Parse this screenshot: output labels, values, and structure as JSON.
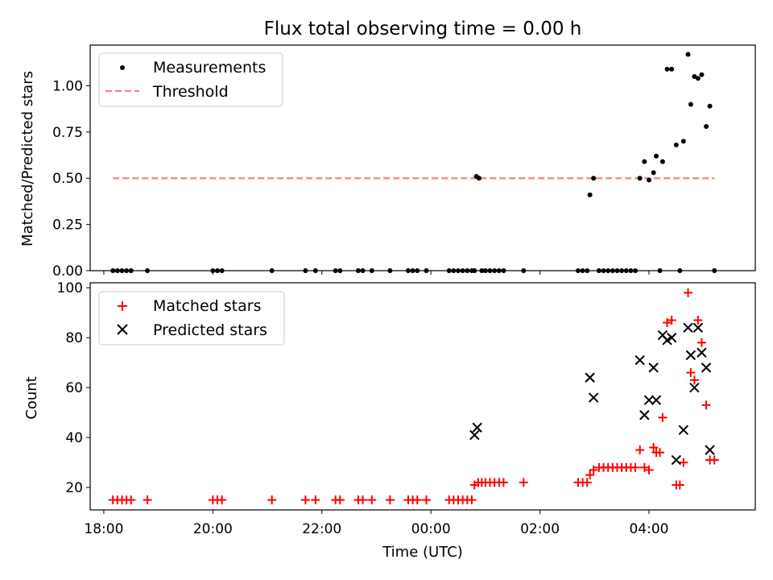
{
  "chart_data": [
    {
      "type": "scatter",
      "title": "Flux total observing time = 0.00 h",
      "xlabel": "",
      "ylabel": "Matched/Predicted stars",
      "xlim": [
        "17:45",
        "05:57"
      ],
      "ylim": [
        0.0,
        1.22
      ],
      "y_ticks": [
        "0.00",
        "0.25",
        "0.50",
        "0.75",
        "1.00"
      ],
      "legend_position": "upper-left",
      "grid": false,
      "series": [
        {
          "name": "Measurements",
          "marker": "dot",
          "color": "#000000",
          "points": [
            [
              "18:10",
              0
            ],
            [
              "18:15",
              0
            ],
            [
              "18:20",
              0
            ],
            [
              "18:25",
              0
            ],
            [
              "18:30",
              0
            ],
            [
              "18:48",
              0
            ],
            [
              "20:00",
              0
            ],
            [
              "20:05",
              0
            ],
            [
              "20:10",
              0
            ],
            [
              "21:05",
              0
            ],
            [
              "21:42",
              0
            ],
            [
              "21:53",
              0
            ],
            [
              "22:15",
              0
            ],
            [
              "22:20",
              0
            ],
            [
              "22:40",
              0
            ],
            [
              "22:45",
              0
            ],
            [
              "22:55",
              0
            ],
            [
              "23:15",
              0
            ],
            [
              "23:35",
              0
            ],
            [
              "23:40",
              0
            ],
            [
              "23:45",
              0
            ],
            [
              "23:55",
              0
            ],
            [
              "00:20",
              0
            ],
            [
              "00:25",
              0
            ],
            [
              "00:30",
              0
            ],
            [
              "00:35",
              0
            ],
            [
              "00:40",
              0
            ],
            [
              "00:45",
              0
            ],
            [
              "00:48",
              0
            ],
            [
              "00:50",
              0.51
            ],
            [
              "00:53",
              0.5
            ],
            [
              "00:56",
              0
            ],
            [
              "01:00",
              0
            ],
            [
              "01:05",
              0
            ],
            [
              "01:10",
              0
            ],
            [
              "01:15",
              0
            ],
            [
              "01:20",
              0
            ],
            [
              "01:42",
              0
            ],
            [
              "02:42",
              0
            ],
            [
              "02:47",
              0
            ],
            [
              "02:52",
              0
            ],
            [
              "02:55",
              0.41
            ],
            [
              "02:59",
              0.5
            ],
            [
              "03:05",
              0
            ],
            [
              "03:10",
              0
            ],
            [
              "03:15",
              0
            ],
            [
              "03:20",
              0
            ],
            [
              "03:25",
              0
            ],
            [
              "03:30",
              0
            ],
            [
              "03:35",
              0
            ],
            [
              "03:40",
              0
            ],
            [
              "03:45",
              0
            ],
            [
              "03:50",
              0.5
            ],
            [
              "03:55",
              0.59
            ],
            [
              "04:00",
              0.49
            ],
            [
              "04:05",
              0.53
            ],
            [
              "04:08",
              0.62
            ],
            [
              "04:12",
              0
            ],
            [
              "04:15",
              0.59
            ],
            [
              "04:20",
              1.09
            ],
            [
              "04:25",
              1.09
            ],
            [
              "04:30",
              0.68
            ],
            [
              "04:34",
              0
            ],
            [
              "04:38",
              0.7
            ],
            [
              "04:43",
              1.17
            ],
            [
              "04:46",
              0.9
            ],
            [
              "04:50",
              1.05
            ],
            [
              "04:54",
              1.04
            ],
            [
              "04:58",
              1.06
            ],
            [
              "05:03",
              0.78
            ],
            [
              "05:07",
              0.89
            ],
            [
              "05:12",
              0
            ]
          ]
        },
        {
          "name": "Threshold",
          "style": "dashed-line",
          "color": "#ff7f7f",
          "points": [
            [
              "18:10",
              0.5
            ],
            [
              "05:12",
              0.5
            ]
          ]
        }
      ]
    },
    {
      "type": "scatter",
      "title": "",
      "xlabel": "Time (UTC)",
      "ylabel": "Count",
      "xlim": [
        "17:45",
        "05:57"
      ],
      "ylim": [
        11,
        102
      ],
      "y_ticks": [
        "20",
        "40",
        "60",
        "80",
        "100"
      ],
      "x_ticks": [
        "18:00",
        "20:00",
        "22:00",
        "00:00",
        "02:00",
        "04:00"
      ],
      "legend_position": "upper-left",
      "grid": false,
      "series": [
        {
          "name": "Matched stars",
          "marker": "plus",
          "color": "#ff0000",
          "points": [
            [
              "18:10",
              15
            ],
            [
              "18:15",
              15
            ],
            [
              "18:20",
              15
            ],
            [
              "18:25",
              15
            ],
            [
              "18:30",
              15
            ],
            [
              "18:48",
              15
            ],
            [
              "20:00",
              15
            ],
            [
              "20:05",
              15
            ],
            [
              "20:10",
              15
            ],
            [
              "21:05",
              15
            ],
            [
              "21:42",
              15
            ],
            [
              "21:53",
              15
            ],
            [
              "22:15",
              15
            ],
            [
              "22:20",
              15
            ],
            [
              "22:40",
              15
            ],
            [
              "22:45",
              15
            ],
            [
              "22:55",
              15
            ],
            [
              "23:15",
              15
            ],
            [
              "23:35",
              15
            ],
            [
              "23:40",
              15
            ],
            [
              "23:45",
              15
            ],
            [
              "23:55",
              15
            ],
            [
              "00:20",
              15
            ],
            [
              "00:25",
              15
            ],
            [
              "00:30",
              15
            ],
            [
              "00:35",
              15
            ],
            [
              "00:40",
              15
            ],
            [
              "00:45",
              15
            ],
            [
              "00:48",
              21
            ],
            [
              "00:52",
              22
            ],
            [
              "00:56",
              22
            ],
            [
              "01:00",
              22
            ],
            [
              "01:05",
              22
            ],
            [
              "01:10",
              22
            ],
            [
              "01:15",
              22
            ],
            [
              "01:20",
              22
            ],
            [
              "01:42",
              22
            ],
            [
              "02:42",
              22
            ],
            [
              "02:47",
              22
            ],
            [
              "02:52",
              22
            ],
            [
              "02:55",
              25
            ],
            [
              "02:59",
              27
            ],
            [
              "03:05",
              28
            ],
            [
              "03:10",
              28
            ],
            [
              "03:15",
              28
            ],
            [
              "03:20",
              28
            ],
            [
              "03:25",
              28
            ],
            [
              "03:30",
              28
            ],
            [
              "03:35",
              28
            ],
            [
              "03:40",
              28
            ],
            [
              "03:45",
              28
            ],
            [
              "03:50",
              35
            ],
            [
              "03:55",
              28
            ],
            [
              "04:00",
              27
            ],
            [
              "04:05",
              36
            ],
            [
              "04:08",
              34
            ],
            [
              "04:12",
              34
            ],
            [
              "04:15",
              48
            ],
            [
              "04:20",
              86
            ],
            [
              "04:25",
              87
            ],
            [
              "04:30",
              21
            ],
            [
              "04:34",
              21
            ],
            [
              "04:38",
              30
            ],
            [
              "04:43",
              98
            ],
            [
              "04:46",
              66
            ],
            [
              "04:50",
              63
            ],
            [
              "04:54",
              87
            ],
            [
              "04:58",
              78
            ],
            [
              "05:03",
              53
            ],
            [
              "05:07",
              31
            ],
            [
              "05:12",
              31
            ]
          ]
        },
        {
          "name": "Predicted stars",
          "marker": "x",
          "color": "#000000",
          "points": [
            [
              "00:48",
              41
            ],
            [
              "00:51",
              44
            ],
            [
              "02:55",
              64
            ],
            [
              "02:59",
              56
            ],
            [
              "03:50",
              71
            ],
            [
              "03:55",
              49
            ],
            [
              "04:00",
              55
            ],
            [
              "04:05",
              68
            ],
            [
              "04:08",
              55
            ],
            [
              "04:15",
              81
            ],
            [
              "04:20",
              79
            ],
            [
              "04:25",
              80
            ],
            [
              "04:30",
              31
            ],
            [
              "04:38",
              43
            ],
            [
              "04:43",
              84
            ],
            [
              "04:46",
              73
            ],
            [
              "04:50",
              60
            ],
            [
              "04:54",
              84
            ],
            [
              "04:58",
              74
            ],
            [
              "05:03",
              68
            ],
            [
              "05:07",
              35
            ]
          ]
        }
      ]
    }
  ]
}
